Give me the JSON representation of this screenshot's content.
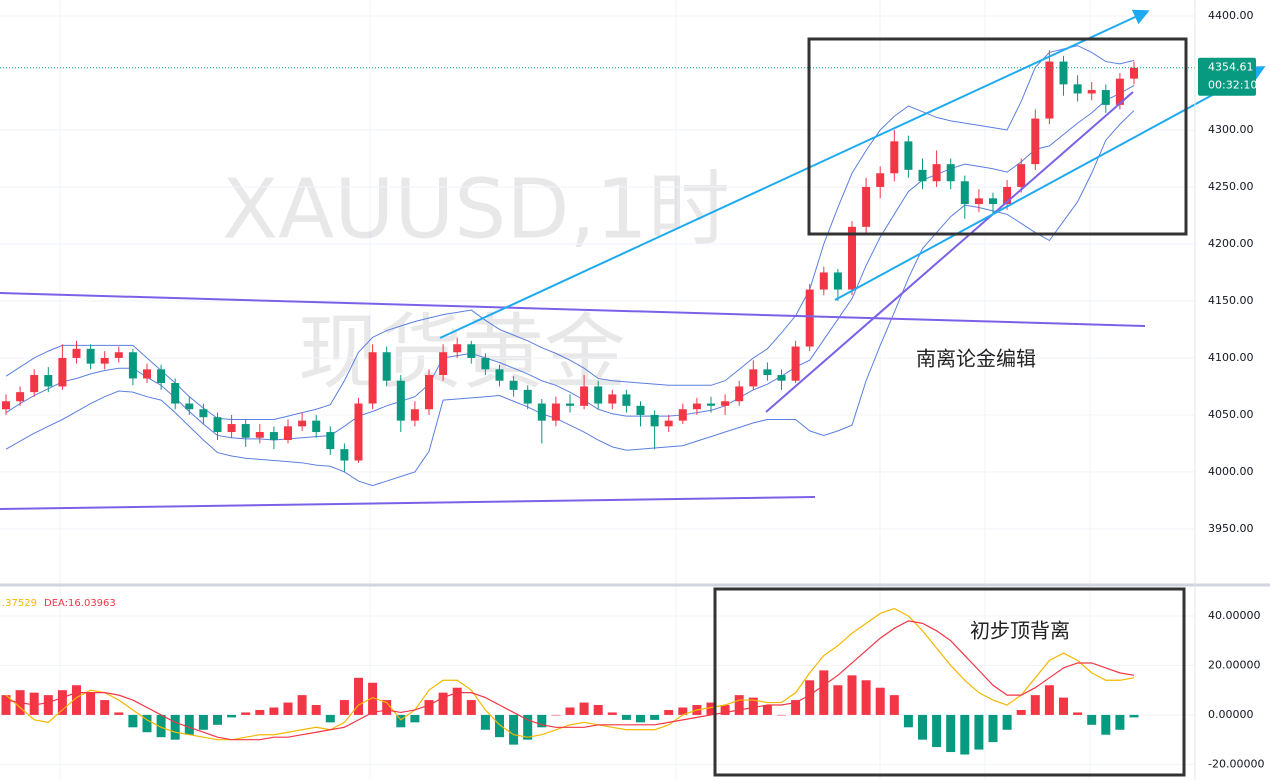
{
  "chart_data": [
    {
      "type": "candlestick",
      "title": "XAUUSD,1时",
      "subtitle": "现货黄金",
      "annotation": "南离论金编辑",
      "up_color": "#f23645",
      "down_color": "#089981",
      "band_color": "#5b7fe0",
      "grid": true,
      "ylim": [
        3905.2,
        4414
      ],
      "yticks": [
        {
          "value": 3950,
          "label": "3950.00"
        },
        {
          "value": 4000,
          "label": "4000.00"
        },
        {
          "value": 4050,
          "label": "4050.00"
        },
        {
          "value": 4100,
          "label": "4100.00"
        },
        {
          "value": 4150,
          "label": "4150.00"
        },
        {
          "value": 4200,
          "label": "4200.00"
        },
        {
          "value": 4250,
          "label": "4250.00"
        },
        {
          "value": 4300,
          "label": "4300.00"
        },
        {
          "value": 4400,
          "label": "4400.00"
        }
      ],
      "last_price": 4354.61,
      "countdown": "00:32:10",
      "ohlc": [
        [
          4055,
          4068,
          4050,
          4062
        ],
        [
          4062,
          4075,
          4058,
          4070
        ],
        [
          4070,
          4090,
          4066,
          4085
        ],
        [
          4085,
          4092,
          4070,
          4075
        ],
        [
          4075,
          4112,
          4072,
          4100
        ],
        [
          4100,
          4115,
          4095,
          4108
        ],
        [
          4108,
          4112,
          4090,
          4095
        ],
        [
          4095,
          4106,
          4090,
          4100
        ],
        [
          4100,
          4110,
          4096,
          4105
        ],
        [
          4105,
          4108,
          4076,
          4082
        ],
        [
          4082,
          4095,
          4078,
          4090
        ],
        [
          4090,
          4094,
          4072,
          4078
        ],
        [
          4078,
          4082,
          4055,
          4060
        ],
        [
          4060,
          4066,
          4050,
          4055
        ],
        [
          4055,
          4060,
          4042,
          4048
        ],
        [
          4048,
          4052,
          4028,
          4035
        ],
        [
          4035,
          4050,
          4030,
          4042
        ],
        [
          4042,
          4046,
          4022,
          4030
        ],
        [
          4030,
          4042,
          4025,
          4035
        ],
        [
          4035,
          4040,
          4020,
          4028
        ],
        [
          4028,
          4046,
          4025,
          4040
        ],
        [
          4040,
          4052,
          4036,
          4045
        ],
        [
          4045,
          4050,
          4030,
          4035
        ],
        [
          4035,
          4040,
          4015,
          4020
        ],
        [
          4020,
          4025,
          4000,
          4010
        ],
        [
          4010,
          4065,
          4008,
          4060
        ],
        [
          4060,
          4112,
          4055,
          4105
        ],
        [
          4105,
          4110,
          4075,
          4080
        ],
        [
          4080,
          4085,
          4035,
          4045
        ],
        [
          4045,
          4062,
          4040,
          4055
        ],
        [
          4055,
          4090,
          4050,
          4085
        ],
        [
          4085,
          4112,
          4080,
          4105
        ],
        [
          4105,
          4118,
          4100,
          4112
        ],
        [
          4112,
          4115,
          4095,
          4100
        ],
        [
          4100,
          4104,
          4085,
          4090
        ],
        [
          4090,
          4094,
          4075,
          4080
        ],
        [
          4080,
          4084,
          4066,
          4072
        ],
        [
          4072,
          4076,
          4055,
          4060
        ],
        [
          4060,
          4064,
          4025,
          4045
        ],
        [
          4045,
          4066,
          4040,
          4060
        ],
        [
          4060,
          4068,
          4052,
          4058
        ],
        [
          4058,
          4085,
          4055,
          4075
        ],
        [
          4075,
          4080,
          4055,
          4060
        ],
        [
          4060,
          4072,
          4055,
          4068
        ],
        [
          4068,
          4072,
          4052,
          4058
        ],
        [
          4058,
          4062,
          4040,
          4050
        ],
        [
          4050,
          4054,
          4020,
          4040
        ],
        [
          4040,
          4050,
          4035,
          4045
        ],
        [
          4045,
          4060,
          4042,
          4055
        ],
        [
          4055,
          4065,
          4050,
          4060
        ],
        [
          4060,
          4066,
          4052,
          4058
        ],
        [
          4058,
          4068,
          4050,
          4062
        ],
        [
          4062,
          4080,
          4058,
          4075
        ],
        [
          4075,
          4098,
          4072,
          4090
        ],
        [
          4090,
          4096,
          4080,
          4085
        ],
        [
          4085,
          4090,
          4072,
          4080
        ],
        [
          4080,
          4115,
          4078,
          4110
        ],
        [
          4110,
          4165,
          4106,
          4160
        ],
        [
          4160,
          4180,
          4155,
          4175
        ],
        [
          4175,
          4178,
          4150,
          4160
        ],
        [
          4160,
          4220,
          4155,
          4215
        ],
        [
          4215,
          4258,
          4210,
          4250
        ],
        [
          4250,
          4268,
          4240,
          4262
        ],
        [
          4262,
          4300,
          4255,
          4290
        ],
        [
          4290,
          4295,
          4258,
          4265
        ],
        [
          4265,
          4275,
          4248,
          4255
        ],
        [
          4255,
          4282,
          4250,
          4270
        ],
        [
          4270,
          4275,
          4248,
          4255
        ],
        [
          4255,
          4260,
          4222,
          4235
        ],
        [
          4235,
          4248,
          4228,
          4240
        ],
        [
          4240,
          4245,
          4226,
          4235
        ],
        [
          4235,
          4256,
          4230,
          4250
        ],
        [
          4250,
          4275,
          4245,
          4270
        ],
        [
          4270,
          4318,
          4265,
          4310
        ],
        [
          4310,
          4370,
          4305,
          4360
        ],
        [
          4360,
          4365,
          4330,
          4340
        ],
        [
          4340,
          4348,
          4325,
          4332
        ],
        [
          4332,
          4342,
          4326,
          4335
        ],
        [
          4335,
          4340,
          4315,
          4322
        ],
        [
          4322,
          4350,
          4318,
          4345
        ],
        [
          4345,
          4360,
          4340,
          4354.61
        ]
      ],
      "bollinger": {
        "upper": [
          4084,
          4092,
          4100,
          4106,
          4111,
          4111,
          4111,
          4111,
          4111,
          4111,
          4100,
          4089,
          4078,
          4066,
          4056,
          4047,
          4046,
          4046,
          4046,
          4046,
          4049,
          4052,
          4055,
          4059,
          4080,
          4105,
          4118,
          4124,
          4128,
          4132,
          4135,
          4138,
          4140,
          4142,
          4133,
          4125,
          4120,
          4115,
          4109,
          4104,
          4098,
          4091,
          4082,
          4080,
          4079,
          4078,
          4077,
          4076,
          4076,
          4076,
          4076,
          4080,
          4090,
          4100,
          4108,
          4122,
          4137,
          4160,
          4200,
          4232,
          4262,
          4282,
          4300,
          4312,
          4321,
          4316,
          4311,
          4308,
          4306,
          4304,
          4302,
          4300,
          4325,
          4355,
          4368,
          4371,
          4374,
          4368,
          4360,
          4358,
          4361
        ],
        "middle": [
          4052,
          4060,
          4067,
          4073,
          4079,
          4082,
          4086,
          4089,
          4091,
          4091,
          4083,
          4076,
          4065,
          4053,
          4042,
          4032,
          4030,
          4029,
          4029,
          4028,
          4029,
          4030,
          4031,
          4032,
          4040,
          4049,
          4053,
          4058,
          4062,
          4066,
          4077,
          4100,
          4102,
          4104,
          4100,
          4096,
          4091,
          4086,
          4080,
          4076,
          4070,
          4063,
          4055,
          4051,
          4049,
          4049,
          4049,
          4049,
          4050,
          4052,
          4054,
          4058,
          4065,
          4072,
          4077,
          4084,
          4092,
          4098,
          4116,
          4134,
          4152,
          4181,
          4206,
          4226,
          4246,
          4256,
          4261,
          4266,
          4270,
          4268,
          4266,
          4263,
          4272,
          4283,
          4286,
          4296,
          4306,
          4315,
          4326,
          4332,
          4339
        ],
        "lower": [
          4020,
          4027,
          4034,
          4040,
          4046,
          4053,
          4060,
          4066,
          4071,
          4070,
          4066,
          4063,
          4052,
          4040,
          4028,
          4017,
          4014,
          4012,
          4011,
          4010,
          4009,
          4008,
          4006,
          4005,
          4000,
          3992,
          3988,
          3992,
          3996,
          4000,
          4018,
          4063,
          4064,
          4065,
          4066,
          4067,
          4062,
          4057,
          4051,
          4047,
          4041,
          4035,
          4028,
          4022,
          4019,
          4020,
          4021,
          4022,
          4023,
          4027,
          4031,
          4035,
          4039,
          4043,
          4046,
          4046,
          4046,
          4036,
          4032,
          4036,
          4041,
          4080,
          4111,
          4140,
          4170,
          4196,
          4210,
          4224,
          4234,
          4232,
          4229,
          4226,
          4218,
          4210,
          4203,
          4220,
          4237,
          4262,
          4291,
          4305,
          4317
        ]
      }
    },
    {
      "type": "macd",
      "annotation": "初步顶背离",
      "legend": [
        ".37529",
        "DEA:16.03963"
      ],
      "up_color": "#f23645",
      "down_color": "#089981",
      "dif_color": "#f5b800",
      "dea_color": "#f23645",
      "ylim": [
        -26.3,
        51.7
      ],
      "yticks": [
        {
          "value": -20,
          "label": "-20.00000"
        },
        {
          "value": 0,
          "label": "0.00000"
        },
        {
          "value": 20,
          "label": "20.00000"
        },
        {
          "value": 40,
          "label": "40.00000"
        }
      ],
      "histogram": [
        8,
        10,
        9,
        8,
        10,
        12,
        9,
        6,
        1,
        -5,
        -7,
        -9,
        -10,
        -8,
        -6,
        -4,
        -1,
        1,
        2,
        3,
        5,
        8,
        4,
        -3,
        6,
        15,
        13,
        6,
        -5,
        -3,
        6,
        9,
        11,
        6,
        -6,
        -9,
        -12,
        -10,
        -5,
        0,
        3,
        5,
        4,
        1,
        -2,
        -3,
        -2,
        2,
        3,
        4,
        5,
        4,
        8,
        7,
        4,
        0,
        6,
        14,
        18,
        12,
        16,
        14,
        11,
        8,
        -5,
        -10,
        -13,
        -15,
        -16,
        -14,
        -11,
        -6,
        2,
        8,
        12,
        7,
        1,
        -4,
        -8,
        -6,
        -1
      ],
      "dif": [
        8,
        3,
        -2,
        -3,
        2,
        7,
        10,
        9,
        6,
        2,
        -2,
        -5,
        -7,
        -8,
        -9,
        -10,
        -10,
        -9,
        -8,
        -8,
        -7,
        -6,
        -5,
        -6,
        -3,
        4,
        7,
        5,
        -2,
        2,
        10,
        14,
        14,
        10,
        2,
        -4,
        -8,
        -9,
        -8,
        -6,
        -4,
        -3,
        -4,
        -5,
        -6,
        -6,
        -6,
        -4,
        0,
        2,
        3,
        4,
        6,
        6,
        5,
        5,
        9,
        17,
        24,
        28,
        33,
        37,
        41,
        43,
        40,
        34,
        27,
        20,
        14,
        9,
        6,
        4,
        8,
        15,
        22,
        25,
        22,
        17,
        14,
        14,
        15
      ],
      "dea": [
        6,
        5,
        4,
        5,
        7,
        9,
        9,
        9,
        8,
        6,
        3,
        0,
        -3,
        -5,
        -7,
        -9,
        -10,
        -10,
        -10,
        -9,
        -9,
        -8,
        -7,
        -6,
        -5,
        -2,
        1,
        2,
        1,
        2,
        4,
        7,
        9,
        9,
        7,
        4,
        1,
        -2,
        -4,
        -5,
        -5,
        -5,
        -4,
        -4,
        -4,
        -4,
        -4,
        -3,
        -2,
        -1,
        0,
        1,
        2,
        3,
        4,
        4,
        5,
        8,
        12,
        16,
        21,
        26,
        31,
        35,
        38,
        37,
        34,
        30,
        24,
        18,
        12,
        8,
        8,
        11,
        15,
        19,
        21,
        21,
        19,
        17,
        16
      ]
    }
  ]
}
